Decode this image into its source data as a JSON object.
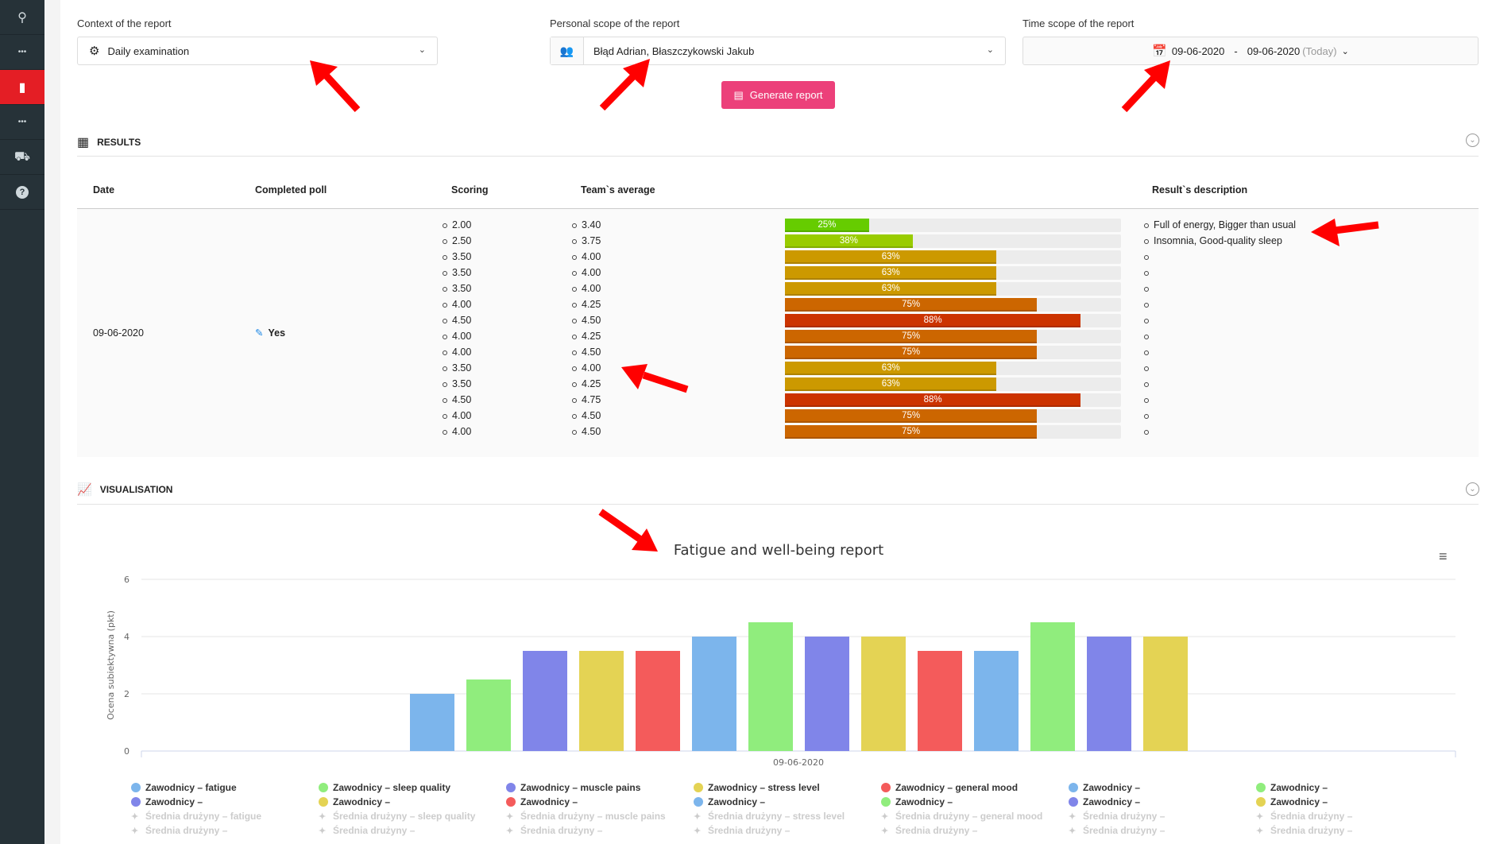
{
  "sidebar": {
    "items": [
      {
        "icon": "network-icon",
        "active": false
      },
      {
        "icon": "more-icon",
        "active": false
      },
      {
        "icon": "report-book-icon",
        "active": true
      },
      {
        "icon": "more-icon",
        "active": false
      },
      {
        "icon": "armchair-icon",
        "active": false
      },
      {
        "icon": "help-icon",
        "active": false
      }
    ]
  },
  "filters": {
    "context": {
      "label": "Context of the report",
      "value": "Daily examination"
    },
    "personal": {
      "label": "Personal scope of the report",
      "value": "Błąd Adrian, Błaszczykowski Jakub"
    },
    "time": {
      "label": "Time scope of the report",
      "from": "09-06-2020",
      "separator": "-",
      "to": "09-06-2020",
      "suffix": "(Today)"
    },
    "generate_label": "Generate report"
  },
  "results": {
    "title": "RESULTS",
    "headers": {
      "date": "Date",
      "completed": "Completed poll",
      "scoring": "Scoring",
      "team_avg": "Team`s average",
      "description": "Result`s description"
    },
    "date": "09-06-2020",
    "completed": "Yes",
    "rows": [
      {
        "scoring": "2.00",
        "team_avg": "3.40",
        "percent": 25,
        "description": "Full of energy, Bigger than usual"
      },
      {
        "scoring": "2.50",
        "team_avg": "3.75",
        "percent": 38,
        "description": "Insomnia, Good-quality sleep"
      },
      {
        "scoring": "3.50",
        "team_avg": "4.00",
        "percent": 63,
        "description": ""
      },
      {
        "scoring": "3.50",
        "team_avg": "4.00",
        "percent": 63,
        "description": ""
      },
      {
        "scoring": "3.50",
        "team_avg": "4.00",
        "percent": 63,
        "description": ""
      },
      {
        "scoring": "4.00",
        "team_avg": "4.25",
        "percent": 75,
        "description": ""
      },
      {
        "scoring": "4.50",
        "team_avg": "4.50",
        "percent": 88,
        "description": ""
      },
      {
        "scoring": "4.00",
        "team_avg": "4.25",
        "percent": 75,
        "description": ""
      },
      {
        "scoring": "4.00",
        "team_avg": "4.50",
        "percent": 75,
        "description": ""
      },
      {
        "scoring": "3.50",
        "team_avg": "4.00",
        "percent": 63,
        "description": ""
      },
      {
        "scoring": "3.50",
        "team_avg": "4.25",
        "percent": 63,
        "description": ""
      },
      {
        "scoring": "4.50",
        "team_avg": "4.75",
        "percent": 88,
        "description": ""
      },
      {
        "scoring": "4.00",
        "team_avg": "4.50",
        "percent": 75,
        "description": ""
      },
      {
        "scoring": "4.00",
        "team_avg": "4.50",
        "percent": 75,
        "description": ""
      }
    ],
    "percent_colors": {
      "25": "#66cc00",
      "38": "#99cc00",
      "63": "#cc9900",
      "75": "#cc6600",
      "88": "#cc3300"
    }
  },
  "visualisation": {
    "title": "VISUALISATION"
  },
  "chart_data": {
    "type": "bar",
    "title": "Fatigue and well-being report",
    "ylabel": "Ocena subiektywna (pkt)",
    "xlabel": "",
    "categories": [
      "09-06-2020"
    ],
    "ylim": [
      0,
      6
    ],
    "yticks": [
      "0",
      "2",
      "4",
      "6"
    ],
    "grid": true,
    "legend_position": "bottom",
    "series": [
      {
        "name": "Zawodnicy – fatigue",
        "values": [
          2.0
        ],
        "color": "#7cb5ec",
        "visible": true
      },
      {
        "name": "Zawodnicy – sleep quality",
        "values": [
          2.5
        ],
        "color": "#90ed7d",
        "visible": true
      },
      {
        "name": "Zawodnicy – muscle pains",
        "values": [
          3.5
        ],
        "color": "#8085e9",
        "visible": true
      },
      {
        "name": "Zawodnicy – stress level",
        "values": [
          3.5
        ],
        "color": "#e4d354",
        "visible": true
      },
      {
        "name": "Zawodnicy – general mood",
        "values": [
          3.5
        ],
        "color": "#f45b5b",
        "visible": true
      },
      {
        "name": "Zawodnicy –",
        "values": [
          4.0
        ],
        "color": "#7cb5ec",
        "visible": true
      },
      {
        "name": "Zawodnicy –",
        "values": [
          4.5
        ],
        "color": "#90ed7d",
        "visible": true
      },
      {
        "name": "Zawodnicy –",
        "values": [
          4.0
        ],
        "color": "#8085e9",
        "visible": true
      },
      {
        "name": "Zawodnicy –",
        "values": [
          4.0
        ],
        "color": "#e4d354",
        "visible": true
      },
      {
        "name": "Zawodnicy –",
        "values": [
          3.5
        ],
        "color": "#f45b5b",
        "visible": true
      },
      {
        "name": "Zawodnicy –",
        "values": [
          3.5
        ],
        "color": "#7cb5ec",
        "visible": true
      },
      {
        "name": "Zawodnicy –",
        "values": [
          4.5
        ],
        "color": "#90ed7d",
        "visible": true
      },
      {
        "name": "Zawodnicy –",
        "values": [
          4.0
        ],
        "color": "#8085e9",
        "visible": true
      },
      {
        "name": "Zawodnicy –",
        "values": [
          4.0
        ],
        "color": "#e4d354",
        "visible": true
      },
      {
        "name": "Średnia drużyny – fatigue",
        "values": [
          3.4
        ],
        "visible": false
      },
      {
        "name": "Średnia drużyny – sleep quality",
        "values": [
          3.75
        ],
        "visible": false
      },
      {
        "name": "Średnia drużyny – muscle pains",
        "values": [
          4.0
        ],
        "visible": false
      },
      {
        "name": "Średnia drużyny – stress level",
        "values": [
          4.0
        ],
        "visible": false
      },
      {
        "name": "Średnia drużyny – general mood",
        "values": [
          4.0
        ],
        "visible": false
      },
      {
        "name": "Średnia drużyny –",
        "values": [
          4.25
        ],
        "visible": false
      },
      {
        "name": "Średnia drużyny –",
        "values": [
          4.5
        ],
        "visible": false
      },
      {
        "name": "Średnia drużyny –",
        "values": [
          4.25
        ],
        "visible": false
      },
      {
        "name": "Średnia drużyny –",
        "values": [
          4.5
        ],
        "visible": false
      },
      {
        "name": "Średnia drużyny –",
        "values": [
          4.0
        ],
        "visible": false
      },
      {
        "name": "Średnia drużyny –",
        "values": [
          4.25
        ],
        "visible": false
      },
      {
        "name": "Średnia drużyny –",
        "values": [
          4.75
        ],
        "visible": false
      },
      {
        "name": "Średnia drużyny –",
        "values": [
          4.5
        ],
        "visible": false
      },
      {
        "name": "Średnia drużyny –",
        "values": [
          4.5
        ],
        "visible": false
      }
    ]
  }
}
